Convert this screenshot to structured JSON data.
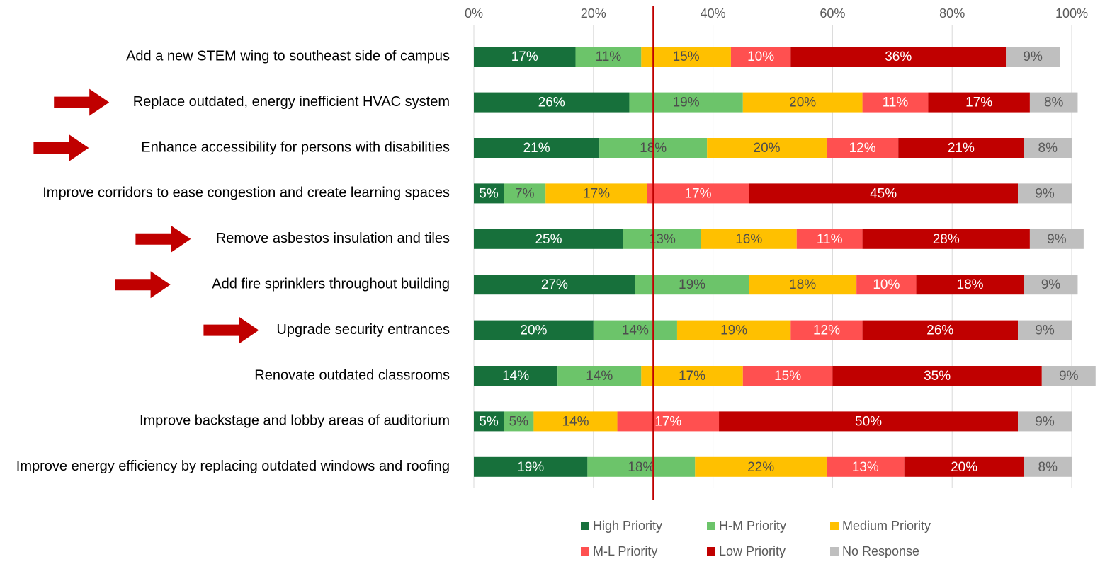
{
  "chart_data": {
    "type": "stacked_bar_horizontal",
    "categories": [
      "Add a new STEM wing to southeast side of campus",
      "Replace outdated, energy inefficient HVAC system",
      "Enhance accessibility for persons with disabilities",
      "Improve corridors to ease congestion and create learning spaces",
      "Remove asbestos insulation and tiles",
      "Add fire sprinklers throughout building",
      "Upgrade security entrances",
      "Renovate outdated classrooms",
      "Improve backstage and lobby areas of auditorium",
      "Improve energy efficiency by replacing outdated windows and roofing"
    ],
    "highlight": [
      false,
      true,
      true,
      false,
      true,
      true,
      true,
      false,
      false,
      false
    ],
    "highlight_color": "#c00000",
    "series": [
      {
        "name": "High Priority",
        "color": "#17703b",
        "label_color": "#ffffff",
        "values": [
          17,
          26,
          21,
          5,
          25,
          27,
          20,
          14,
          5,
          19
        ],
        "value_labels": [
          "17%",
          "26%",
          "21%",
          "5%",
          "25%",
          "27%",
          "20%",
          "14%",
          "5%",
          "19%"
        ]
      },
      {
        "name": "H-M Priority",
        "color": "#6cc46a",
        "label_color": "#4d4d4d",
        "values": [
          11,
          19,
          18,
          7,
          13,
          19,
          14,
          14,
          5,
          18
        ],
        "value_labels": [
          "11%",
          "19%",
          "18%",
          "7%",
          "13%",
          "19%",
          "14%",
          "14%",
          "5%",
          "18%"
        ]
      },
      {
        "name": "Medium Priority",
        "color": "#ffc000",
        "label_color": "#4d4d4d",
        "values": [
          15,
          20,
          20,
          17,
          16,
          18,
          19,
          17,
          14,
          22
        ],
        "value_labels": [
          "15%",
          "20%",
          "20%",
          "17%",
          "16%",
          "18%",
          "19%",
          "17%",
          "14%",
          "22%"
        ]
      },
      {
        "name": "M-L Priority",
        "color": "#ff5050",
        "label_color": "#ffffff",
        "values": [
          10,
          11,
          12,
          17,
          11,
          10,
          12,
          15,
          17,
          13
        ],
        "value_labels": [
          "10%",
          "11%",
          "12%",
          "17%",
          "11%",
          "10%",
          "12%",
          "15%",
          "17%",
          "13%"
        ]
      },
      {
        "name": "Low Priority",
        "color": "#c00000",
        "label_color": "#ffffff",
        "values": [
          36,
          17,
          21,
          45,
          28,
          18,
          26,
          35,
          50,
          20
        ],
        "value_labels": [
          "36%",
          "17%",
          "21%",
          "45%",
          "28%",
          "18%",
          "26%",
          "35%",
          "50%",
          "20%"
        ]
      },
      {
        "name": "No Response",
        "color": "#bfbfbf",
        "label_color": "#595959",
        "values": [
          9,
          8,
          8,
          9,
          9,
          9,
          9,
          9,
          9,
          8
        ],
        "value_labels": [
          "9%",
          "8%",
          "8%",
          "9%",
          "9%",
          "9%",
          "9%",
          "9%",
          "9%",
          "8%"
        ]
      }
    ],
    "xlim": [
      0,
      100
    ],
    "xticks": [
      {
        "value": 0,
        "label": "0%"
      },
      {
        "value": 20,
        "label": "20%"
      },
      {
        "value": 40,
        "label": "40%"
      },
      {
        "value": 60,
        "label": "60%"
      },
      {
        "value": 80,
        "label": "80%"
      },
      {
        "value": 100,
        "label": "100%"
      }
    ],
    "grid": true,
    "reference_line": 30,
    "reference_color": "#c00000",
    "legend": "bottom"
  }
}
